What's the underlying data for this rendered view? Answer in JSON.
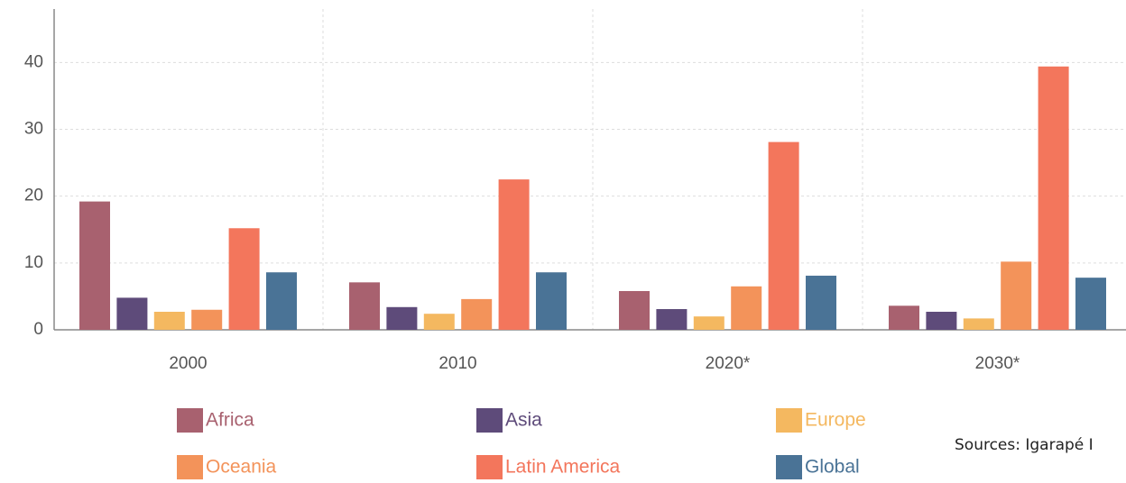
{
  "chart_data": {
    "type": "bar",
    "categories": [
      "2000",
      "2010",
      "2020*",
      "2030*"
    ],
    "series": [
      {
        "name": "Africa",
        "color": "#a8616f",
        "values": [
          19.2,
          7.1,
          5.8,
          3.6
        ]
      },
      {
        "name": "Asia",
        "color": "#5e4b7a",
        "values": [
          4.8,
          3.4,
          3.1,
          2.7
        ]
      },
      {
        "name": "Europe",
        "color": "#f4b860",
        "values": [
          2.7,
          2.4,
          2.0,
          1.7
        ]
      },
      {
        "name": "Oceania",
        "color": "#f3935a",
        "values": [
          3.0,
          4.6,
          6.5,
          10.2
        ]
      },
      {
        "name": "Latin America",
        "color": "#f3765c",
        "values": [
          15.2,
          22.5,
          28.1,
          39.4
        ]
      },
      {
        "name": "Global",
        "color": "#4a7396",
        "values": [
          8.6,
          8.6,
          8.1,
          7.8
        ]
      }
    ],
    "ylim": [
      0,
      48
    ],
    "yticks": [
      0,
      10,
      20,
      30,
      40
    ],
    "grid": true,
    "source": "Sources: Igarapé I"
  }
}
